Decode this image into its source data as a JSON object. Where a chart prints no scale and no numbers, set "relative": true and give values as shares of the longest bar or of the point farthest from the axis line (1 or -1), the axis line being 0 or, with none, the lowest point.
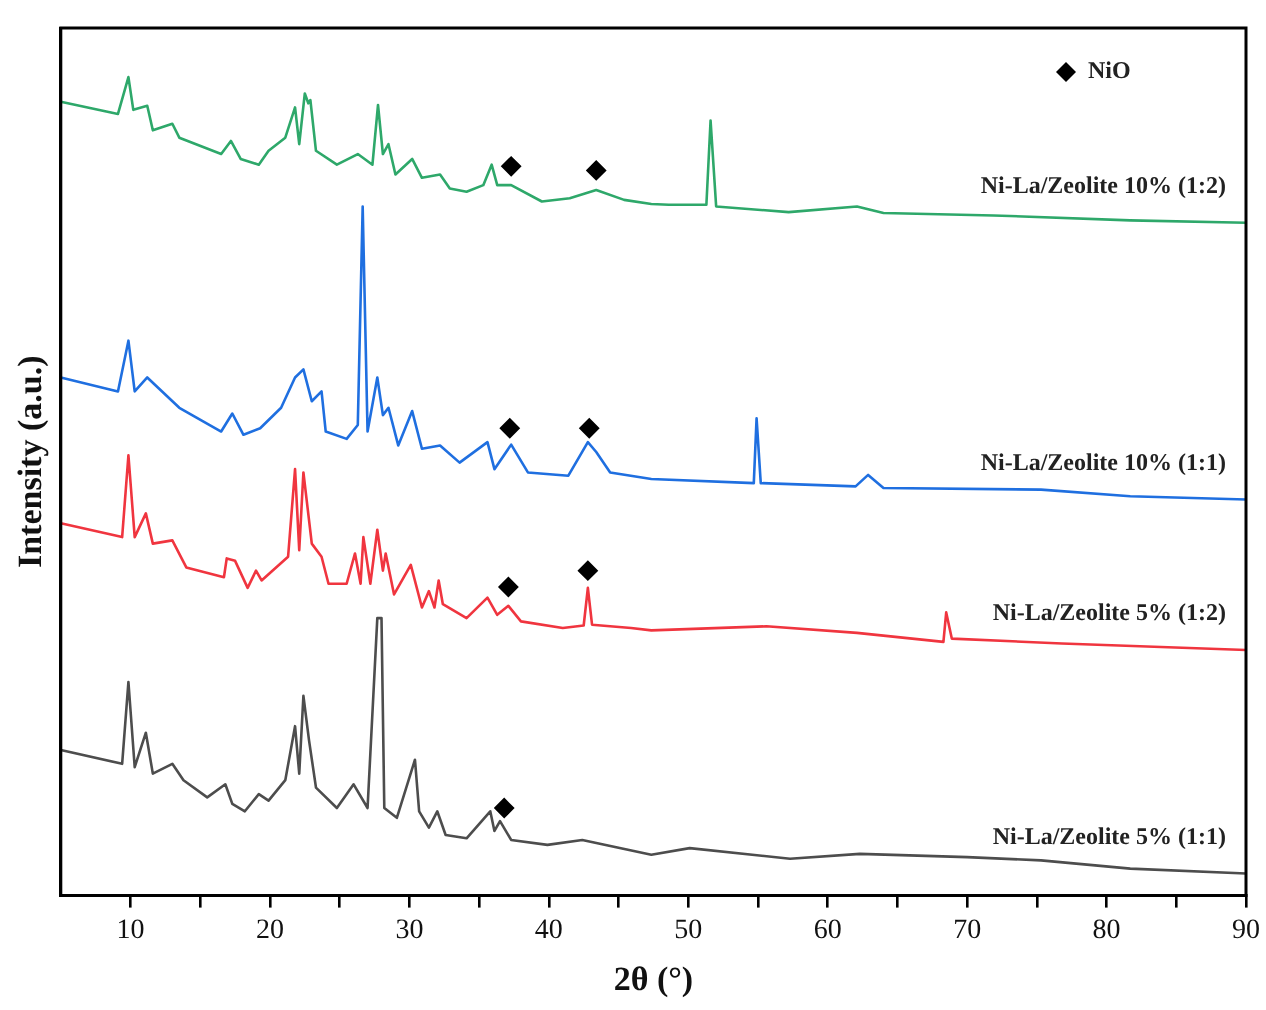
{
  "chart_data": {
    "type": "line",
    "xlabel": "2θ (°)",
    "ylabel": "Intensity (a.u.)",
    "relative": true,
    "xlim": [
      5,
      90
    ],
    "xticks": [
      10,
      {
        "value": 15,
        "label": null
      },
      20,
      {
        "value": 25,
        "label": null
      },
      30,
      {
        "value": 35,
        "label": null
      },
      40,
      {
        "value": 45,
        "label": null
      },
      50,
      {
        "value": 55,
        "label": null
      },
      60,
      {
        "value": 65,
        "label": null
      },
      70,
      {
        "value": 75,
        "label": null
      },
      80,
      {
        "value": 85,
        "label": null
      },
      90
    ],
    "grid": false,
    "legend": "top right",
    "marker": "none",
    "line_style": "solid",
    "series": [
      {
        "name": "Ni-La/Zeolite 10% (1:2)",
        "color": "#2ea86a",
        "x": [
          5,
          9.1,
          9.85,
          10.2,
          11.2,
          11.6,
          13.0,
          13.5,
          16.5,
          17.2,
          17.9,
          19.2,
          19.9,
          21.1,
          21.8,
          22.1,
          22.5,
          22.75,
          22.9,
          23.3,
          24.8,
          26.3,
          27.35,
          27.75,
          28.1,
          28.5,
          29.0,
          30.2,
          30.9,
          32.2,
          32.9,
          34.1,
          35.3,
          35.9,
          36.3,
          37.3,
          39.5,
          41.5,
          43.4,
          45.4,
          47.35,
          48.6,
          51.3,
          51.6,
          52.0,
          57.2,
          62.1,
          64.0,
          71.9,
          81.7,
          90
        ],
        "values": [
          0.97,
          0.955,
          1.0,
          0.96,
          0.965,
          0.935,
          0.943,
          0.926,
          0.906,
          0.922,
          0.9,
          0.893,
          0.91,
          0.926,
          0.963,
          0.918,
          0.98,
          0.968,
          0.972,
          0.91,
          0.893,
          0.906,
          0.893,
          0.966,
          0.906,
          0.918,
          0.881,
          0.9,
          0.877,
          0.881,
          0.864,
          0.86,
          0.868,
          0.893,
          0.868,
          0.868,
          0.848,
          0.852,
          0.862,
          0.85,
          0.845,
          0.844,
          0.844,
          0.947,
          0.842,
          0.835,
          0.842,
          0.834,
          0.831,
          0.825,
          0.822
        ]
      },
      {
        "name": "Ni-La/Zeolite 10% (1:1)",
        "color": "#1f6fe0",
        "x": [
          5,
          9.1,
          9.85,
          10.3,
          11.2,
          13.5,
          16.5,
          17.3,
          18.1,
          19.3,
          20.8,
          21.8,
          22.4,
          23.0,
          23.7,
          24.0,
          25.5,
          26.3,
          26.65,
          27.0,
          27.7,
          28.1,
          28.5,
          29.2,
          30.2,
          30.9,
          32.2,
          33.6,
          35.6,
          36.1,
          37.3,
          38.5,
          41.4,
          42.8,
          43.4,
          44.4,
          47.35,
          54.7,
          54.9,
          55.2,
          62.0,
          62.9,
          64.0,
          75.3,
          81.7,
          90
        ],
        "values": [
          0.633,
          0.616,
          0.678,
          0.616,
          0.633,
          0.596,
          0.567,
          0.589,
          0.563,
          0.571,
          0.596,
          0.633,
          0.643,
          0.604,
          0.616,
          0.567,
          0.558,
          0.575,
          0.842,
          0.567,
          0.633,
          0.587,
          0.596,
          0.55,
          0.592,
          0.546,
          0.55,
          0.529,
          0.554,
          0.521,
          0.551,
          0.517,
          0.513,
          0.554,
          0.542,
          0.517,
          0.509,
          0.504,
          0.583,
          0.504,
          0.5,
          0.514,
          0.498,
          0.496,
          0.488,
          0.484
        ]
      },
      {
        "name": "Ni-La/Zeolite 5% (1:2)",
        "color": "#f0353f",
        "x": [
          5,
          9.4,
          9.85,
          10.3,
          11.1,
          11.6,
          13.0,
          14.0,
          16.7,
          16.9,
          17.5,
          18.4,
          19.0,
          19.4,
          21.3,
          21.8,
          22.1,
          22.4,
          23.0,
          23.7,
          24.2,
          25.5,
          26.1,
          26.5,
          26.7,
          27.2,
          27.7,
          28.1,
          28.3,
          28.9,
          30.1,
          30.9,
          31.4,
          31.8,
          32.1,
          32.4,
          34.1,
          35.6,
          36.3,
          37.1,
          38.0,
          41.0,
          42.5,
          42.8,
          43.1,
          45.9,
          47.35,
          55.6,
          62.1,
          68.3,
          68.5,
          68.9,
          76.8,
          90
        ],
        "values": [
          0.455,
          0.438,
          0.538,
          0.438,
          0.467,
          0.43,
          0.434,
          0.401,
          0.389,
          0.412,
          0.409,
          0.376,
          0.397,
          0.385,
          0.414,
          0.521,
          0.422,
          0.517,
          0.43,
          0.414,
          0.381,
          0.381,
          0.418,
          0.381,
          0.438,
          0.381,
          0.447,
          0.397,
          0.418,
          0.368,
          0.404,
          0.352,
          0.372,
          0.352,
          0.385,
          0.356,
          0.339,
          0.364,
          0.343,
          0.354,
          0.335,
          0.327,
          0.33,
          0.376,
          0.331,
          0.327,
          0.324,
          0.329,
          0.321,
          0.31,
          0.346,
          0.314,
          0.308,
          0.3
        ]
      },
      {
        "name": "Ni-La/Zeolite 5% (1:1)",
        "color": "#4d4d4d",
        "x": [
          5,
          9.4,
          9.85,
          10.3,
          11.1,
          11.6,
          13.0,
          13.8,
          15.5,
          16.8,
          17.3,
          18.2,
          19.2,
          19.9,
          21.1,
          21.8,
          22.1,
          22.4,
          22.8,
          23.3,
          24.8,
          26.0,
          27.0,
          27.7,
          28.0,
          28.2,
          29.1,
          30.4,
          30.7,
          31.4,
          32.0,
          32.6,
          34.1,
          35.8,
          36.1,
          36.5,
          37.3,
          39.9,
          42.4,
          47.35,
          50.1,
          57.3,
          62.3,
          70.0,
          75.3,
          81.7,
          90
        ],
        "values": [
          0.178,
          0.161,
          0.261,
          0.157,
          0.199,
          0.149,
          0.161,
          0.141,
          0.12,
          0.136,
          0.112,
          0.103,
          0.124,
          0.116,
          0.141,
          0.207,
          0.149,
          0.244,
          0.19,
          0.132,
          0.107,
          0.136,
          0.107,
          0.339,
          0.339,
          0.107,
          0.095,
          0.166,
          0.103,
          0.083,
          0.103,
          0.074,
          0.07,
          0.103,
          0.079,
          0.091,
          0.068,
          0.062,
          0.068,
          0.05,
          0.058,
          0.045,
          0.051,
          0.047,
          0.043,
          0.033,
          0.027
        ]
      },
      {
        "name": "NiO",
        "type": "scatter",
        "marker": "diamond",
        "color": "#000000",
        "x": [
          37.3,
          43.4,
          37.2,
          42.9,
          37.1,
          42.8,
          36.8
        ],
        "values": [
          0.891,
          0.886,
          0.571,
          0.571,
          0.377,
          0.397,
          0.107
        ]
      }
    ]
  }
}
